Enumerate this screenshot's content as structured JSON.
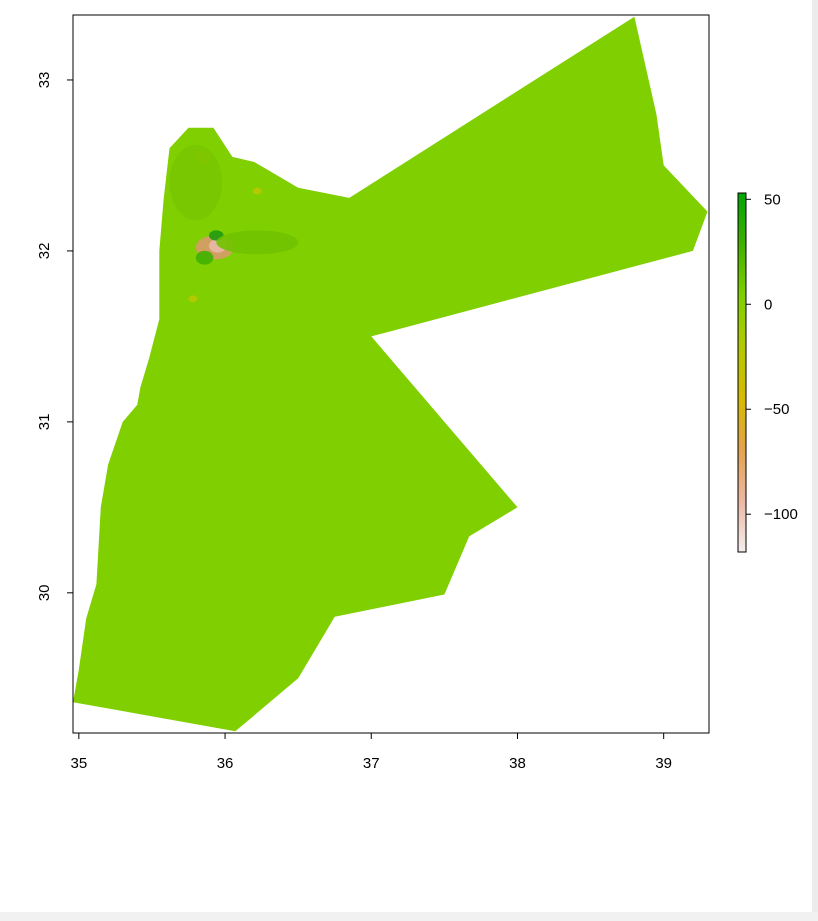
{
  "map": {
    "title": "",
    "x_axis": {
      "ticks": [
        "35",
        "36",
        "37",
        "38",
        "39"
      ],
      "values": [
        35,
        36,
        37,
        38,
        39
      ],
      "range": [
        34.96,
        39.31
      ]
    },
    "y_axis": {
      "ticks": [
        "30",
        "31",
        "32",
        "33"
      ],
      "values": [
        30,
        31,
        32,
        33
      ],
      "range": [
        29.18,
        33.38
      ]
    },
    "fill_color": "#80cf00",
    "legend": {
      "placement": "right",
      "ticks": [
        "50",
        "0",
        "−50",
        "−100"
      ],
      "values": [
        50,
        0,
        -50,
        -100
      ],
      "range": [
        -118,
        53
      ],
      "colors": [
        "#f4eeee",
        "#ebb8a2",
        "#e3a24d",
        "#d5bb00",
        "#b3c900",
        "#80cf00",
        "#40b000",
        "#00a600"
      ]
    },
    "outline_lonlat": [
      [
        34.96,
        29.36
      ],
      [
        35.0,
        29.55
      ],
      [
        35.05,
        29.85
      ],
      [
        35.12,
        30.05
      ],
      [
        35.15,
        30.5
      ],
      [
        35.2,
        30.75
      ],
      [
        35.3,
        31.0
      ],
      [
        35.4,
        31.1
      ],
      [
        35.42,
        31.2
      ],
      [
        35.48,
        31.37
      ],
      [
        35.55,
        31.6
      ],
      [
        35.55,
        32.0
      ],
      [
        35.58,
        32.3
      ],
      [
        35.62,
        32.6
      ],
      [
        35.75,
        32.72
      ],
      [
        35.92,
        32.72
      ],
      [
        36.05,
        32.55
      ],
      [
        36.2,
        32.52
      ],
      [
        36.5,
        32.37
      ],
      [
        36.85,
        32.31
      ],
      [
        38.8,
        33.37
      ],
      [
        38.95,
        32.8
      ],
      [
        39.0,
        32.5
      ],
      [
        39.3,
        32.23
      ],
      [
        39.2,
        32.0
      ],
      [
        37.0,
        31.5
      ],
      [
        38.0,
        30.5
      ],
      [
        37.67,
        30.33
      ],
      [
        37.5,
        29.99
      ],
      [
        36.75,
        29.86
      ],
      [
        36.5,
        29.5
      ],
      [
        36.07,
        29.19
      ]
    ],
    "highlight_patches": [
      {
        "lon": 35.93,
        "lat": 32.02,
        "rx": 0.13,
        "ry": 0.07,
        "color": "#d89a6a"
      },
      {
        "lon": 35.95,
        "lat": 32.03,
        "rx": 0.06,
        "ry": 0.04,
        "color": "#e8b8a8"
      },
      {
        "lon": 35.86,
        "lat": 31.96,
        "rx": 0.06,
        "ry": 0.04,
        "color": "#3fb000"
      },
      {
        "lon": 35.94,
        "lat": 32.09,
        "rx": 0.05,
        "ry": 0.03,
        "color": "#1f9a10"
      },
      {
        "lon": 36.22,
        "lat": 32.05,
        "rx": 0.28,
        "ry": 0.07,
        "color": "#70c200"
      },
      {
        "lon": 35.85,
        "lat": 32.55,
        "rx": 0.05,
        "ry": 0.04,
        "color": "#c8c800"
      },
      {
        "lon": 35.8,
        "lat": 32.4,
        "rx": 0.18,
        "ry": 0.22,
        "color": "#78c500"
      },
      {
        "lon": 36.22,
        "lat": 32.35,
        "rx": 0.03,
        "ry": 0.02,
        "color": "#b9c800"
      },
      {
        "lon": 35.78,
        "lat": 31.72,
        "rx": 0.03,
        "ry": 0.02,
        "color": "#b9c800"
      }
    ]
  }
}
